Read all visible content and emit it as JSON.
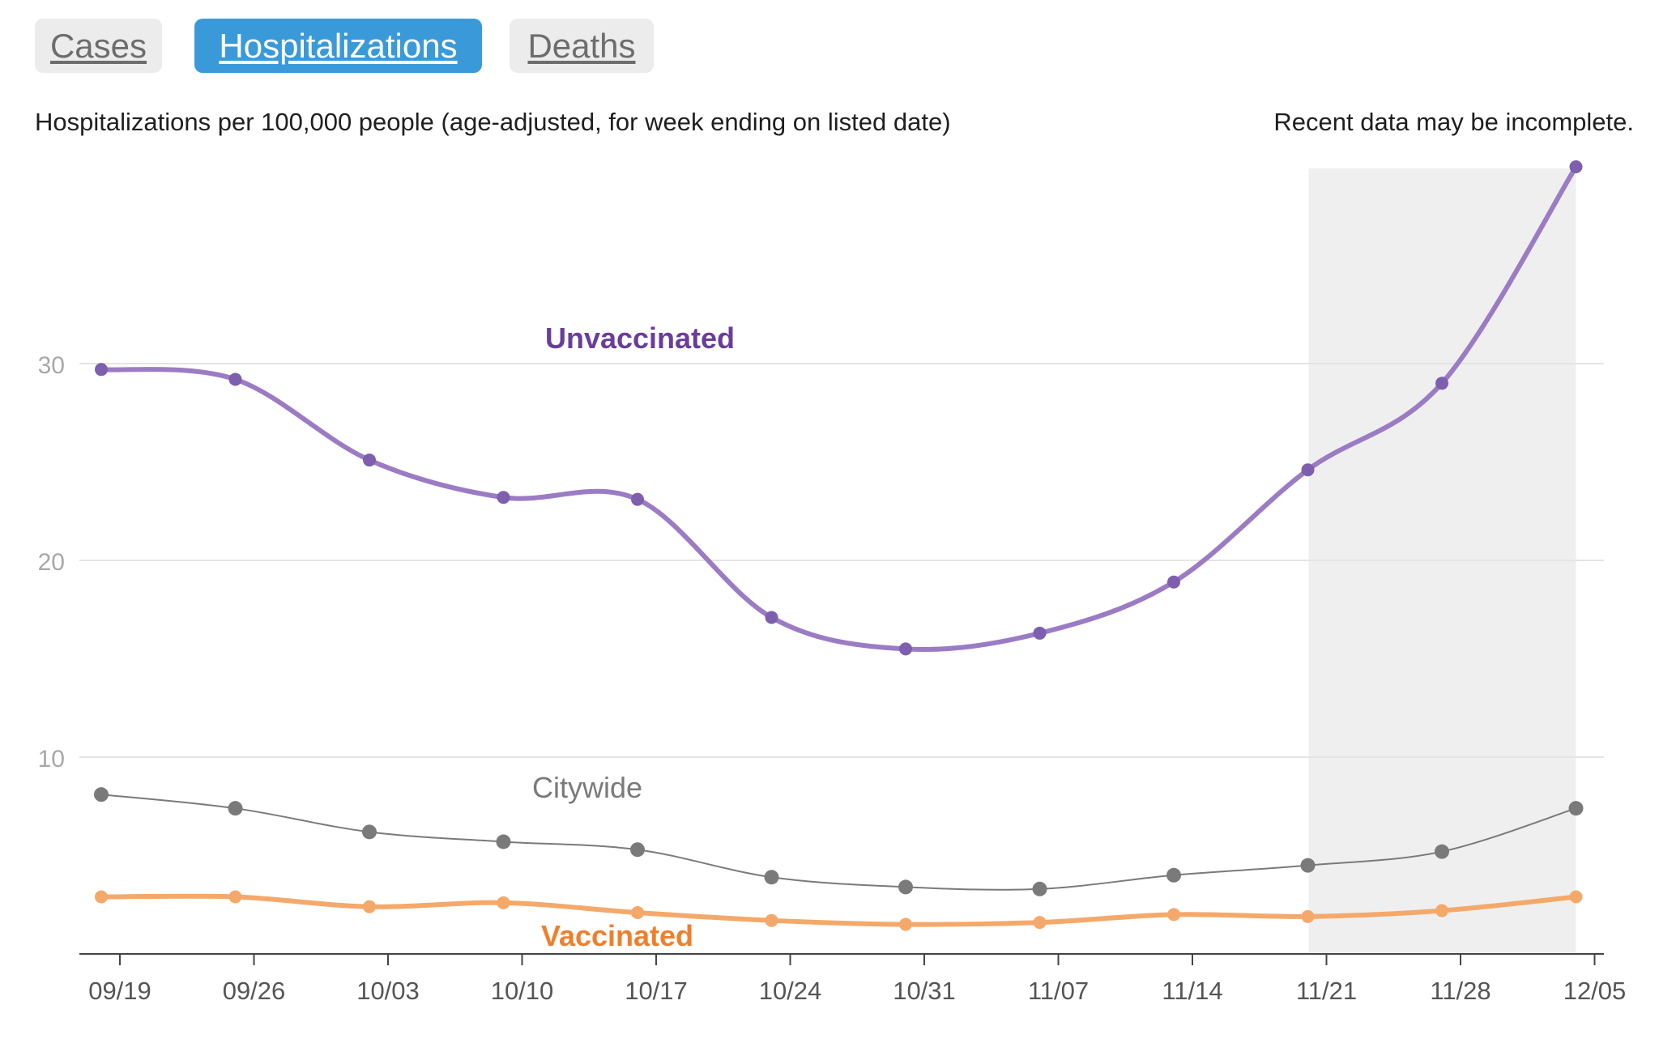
{
  "tabs": {
    "cases": "Cases",
    "hospitalizations": "Hospitalizations",
    "deaths": "Deaths",
    "active": "hospitalizations"
  },
  "subtitle": "Hospitalizations per 100,000 people (age-adjusted, for week ending on listed date)",
  "note": "Recent data may be incomplete.",
  "colors": {
    "unvaccinated": "#9b7cc4",
    "unvaccinated_label": "#6a3d9a",
    "citywide": "#7a7a7a",
    "vaccinated": "#f4a96a",
    "vaccinated_label": "#f07f2c",
    "active_tab": "#3a9ad9",
    "incomplete_band": "#efefef"
  },
  "chart_data": {
    "type": "line",
    "title": "",
    "xlabel": "",
    "ylabel": "",
    "x_ticks": [
      "09/19",
      "09/26",
      "10/03",
      "10/10",
      "10/17",
      "10/24",
      "10/31",
      "11/07",
      "11/14",
      "11/21",
      "11/28",
      "12/05"
    ],
    "y_ticks": [
      10,
      20,
      30
    ],
    "ylim": [
      0,
      40
    ],
    "grid": "horizontal",
    "incomplete_range": [
      "11/20",
      "12/04"
    ],
    "x_dates": [
      "09/18",
      "09/25",
      "10/02",
      "10/09",
      "10/16",
      "10/23",
      "10/30",
      "11/06",
      "11/13",
      "11/20",
      "11/27",
      "12/04"
    ],
    "series": [
      {
        "name": "Unvaccinated",
        "values": [
          29.7,
          29.2,
          25.1,
          23.2,
          23.1,
          17.1,
          15.5,
          16.3,
          18.9,
          24.6,
          29.0,
          40.0
        ]
      },
      {
        "name": "Citywide",
        "values": [
          8.1,
          7.4,
          6.2,
          5.7,
          5.3,
          3.9,
          3.4,
          3.3,
          4.0,
          4.5,
          5.2,
          7.4
        ]
      },
      {
        "name": "Vaccinated",
        "values": [
          2.9,
          2.9,
          2.4,
          2.6,
          2.1,
          1.7,
          1.5,
          1.6,
          2.0,
          1.9,
          2.2,
          2.9
        ]
      }
    ]
  }
}
